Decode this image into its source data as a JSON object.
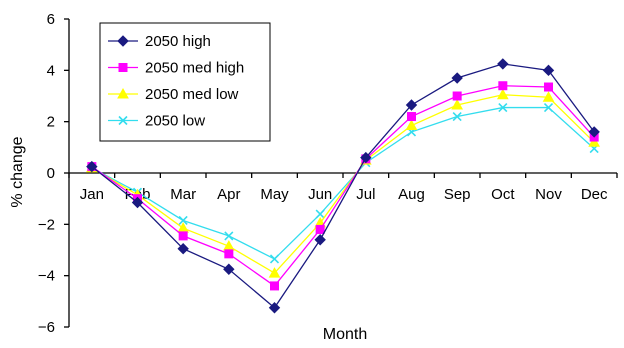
{
  "chart_data": {
    "type": "line",
    "xlabel": "Month",
    "ylabel": "% change",
    "categories": [
      "Jan",
      "Feb",
      "Mar",
      "Apr",
      "May",
      "Jun",
      "Jul",
      "Aug",
      "Sep",
      "Oct",
      "Nov",
      "Dec"
    ],
    "ylim": [
      -6,
      6
    ],
    "yticks": [
      -6,
      -4,
      -2,
      0,
      2,
      4,
      6
    ],
    "ytick_labels": [
      "−6",
      "−4",
      "−2",
      "0",
      "2",
      "4",
      "6"
    ],
    "grid": false,
    "legend_position": "top-left",
    "series": [
      {
        "name": "2050 high",
        "color": "#1a1a80",
        "marker": "diamond",
        "values": [
          0.25,
          -1.15,
          -2.95,
          -3.75,
          -5.25,
          -2.6,
          0.6,
          2.65,
          3.7,
          4.25,
          4.0,
          1.6
        ]
      },
      {
        "name": "2050 med high",
        "color": "#ff00ff",
        "marker": "square",
        "values": [
          0.25,
          -1.0,
          -2.45,
          -3.15,
          -4.4,
          -2.2,
          0.55,
          2.2,
          3.0,
          3.4,
          3.35,
          1.4
        ]
      },
      {
        "name": "2050 med low",
        "color": "#ffff00",
        "marker": "triangle",
        "values": [
          0.2,
          -0.85,
          -2.15,
          -2.85,
          -3.9,
          -1.95,
          0.5,
          1.85,
          2.65,
          3.05,
          2.95,
          1.2
        ]
      },
      {
        "name": "2050 low",
        "color": "#33ddee",
        "marker": "x",
        "values": [
          0.2,
          -0.75,
          -1.85,
          -2.45,
          -3.35,
          -1.6,
          0.4,
          1.6,
          2.2,
          2.55,
          2.55,
          0.95
        ]
      }
    ]
  }
}
